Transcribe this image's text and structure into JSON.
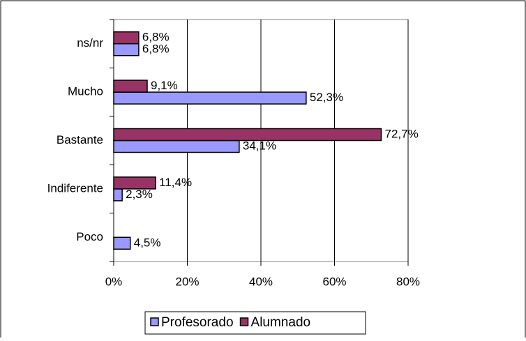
{
  "chart_data": {
    "type": "bar",
    "orientation": "horizontal",
    "categories": [
      "ns/nr",
      "Mucho",
      "Bastante",
      "Indiferente",
      "Poco"
    ],
    "series": [
      {
        "name": "Profesorado",
        "color": "#9999ff",
        "values": [
          6.8,
          52.3,
          34.1,
          2.3,
          4.5
        ],
        "value_labels": [
          "6,8%",
          "52,3%",
          "34,1%",
          "2,3%",
          "4,5%"
        ]
      },
      {
        "name": "Alumnado",
        "color": "#993366",
        "values": [
          6.8,
          9.1,
          72.7,
          11.4,
          null
        ],
        "value_labels": [
          "6,8%",
          "9,1%",
          "72,7%",
          "11,4%",
          null
        ]
      }
    ],
    "xlim": [
      0,
      80
    ],
    "xticks": [
      {
        "value": 0,
        "label": "0%"
      },
      {
        "value": 20,
        "label": "20%"
      },
      {
        "value": 40,
        "label": "40%"
      },
      {
        "value": 60,
        "label": "60%"
      },
      {
        "value": 80,
        "label": "80%"
      }
    ],
    "grid": true,
    "legend": "bottom"
  }
}
